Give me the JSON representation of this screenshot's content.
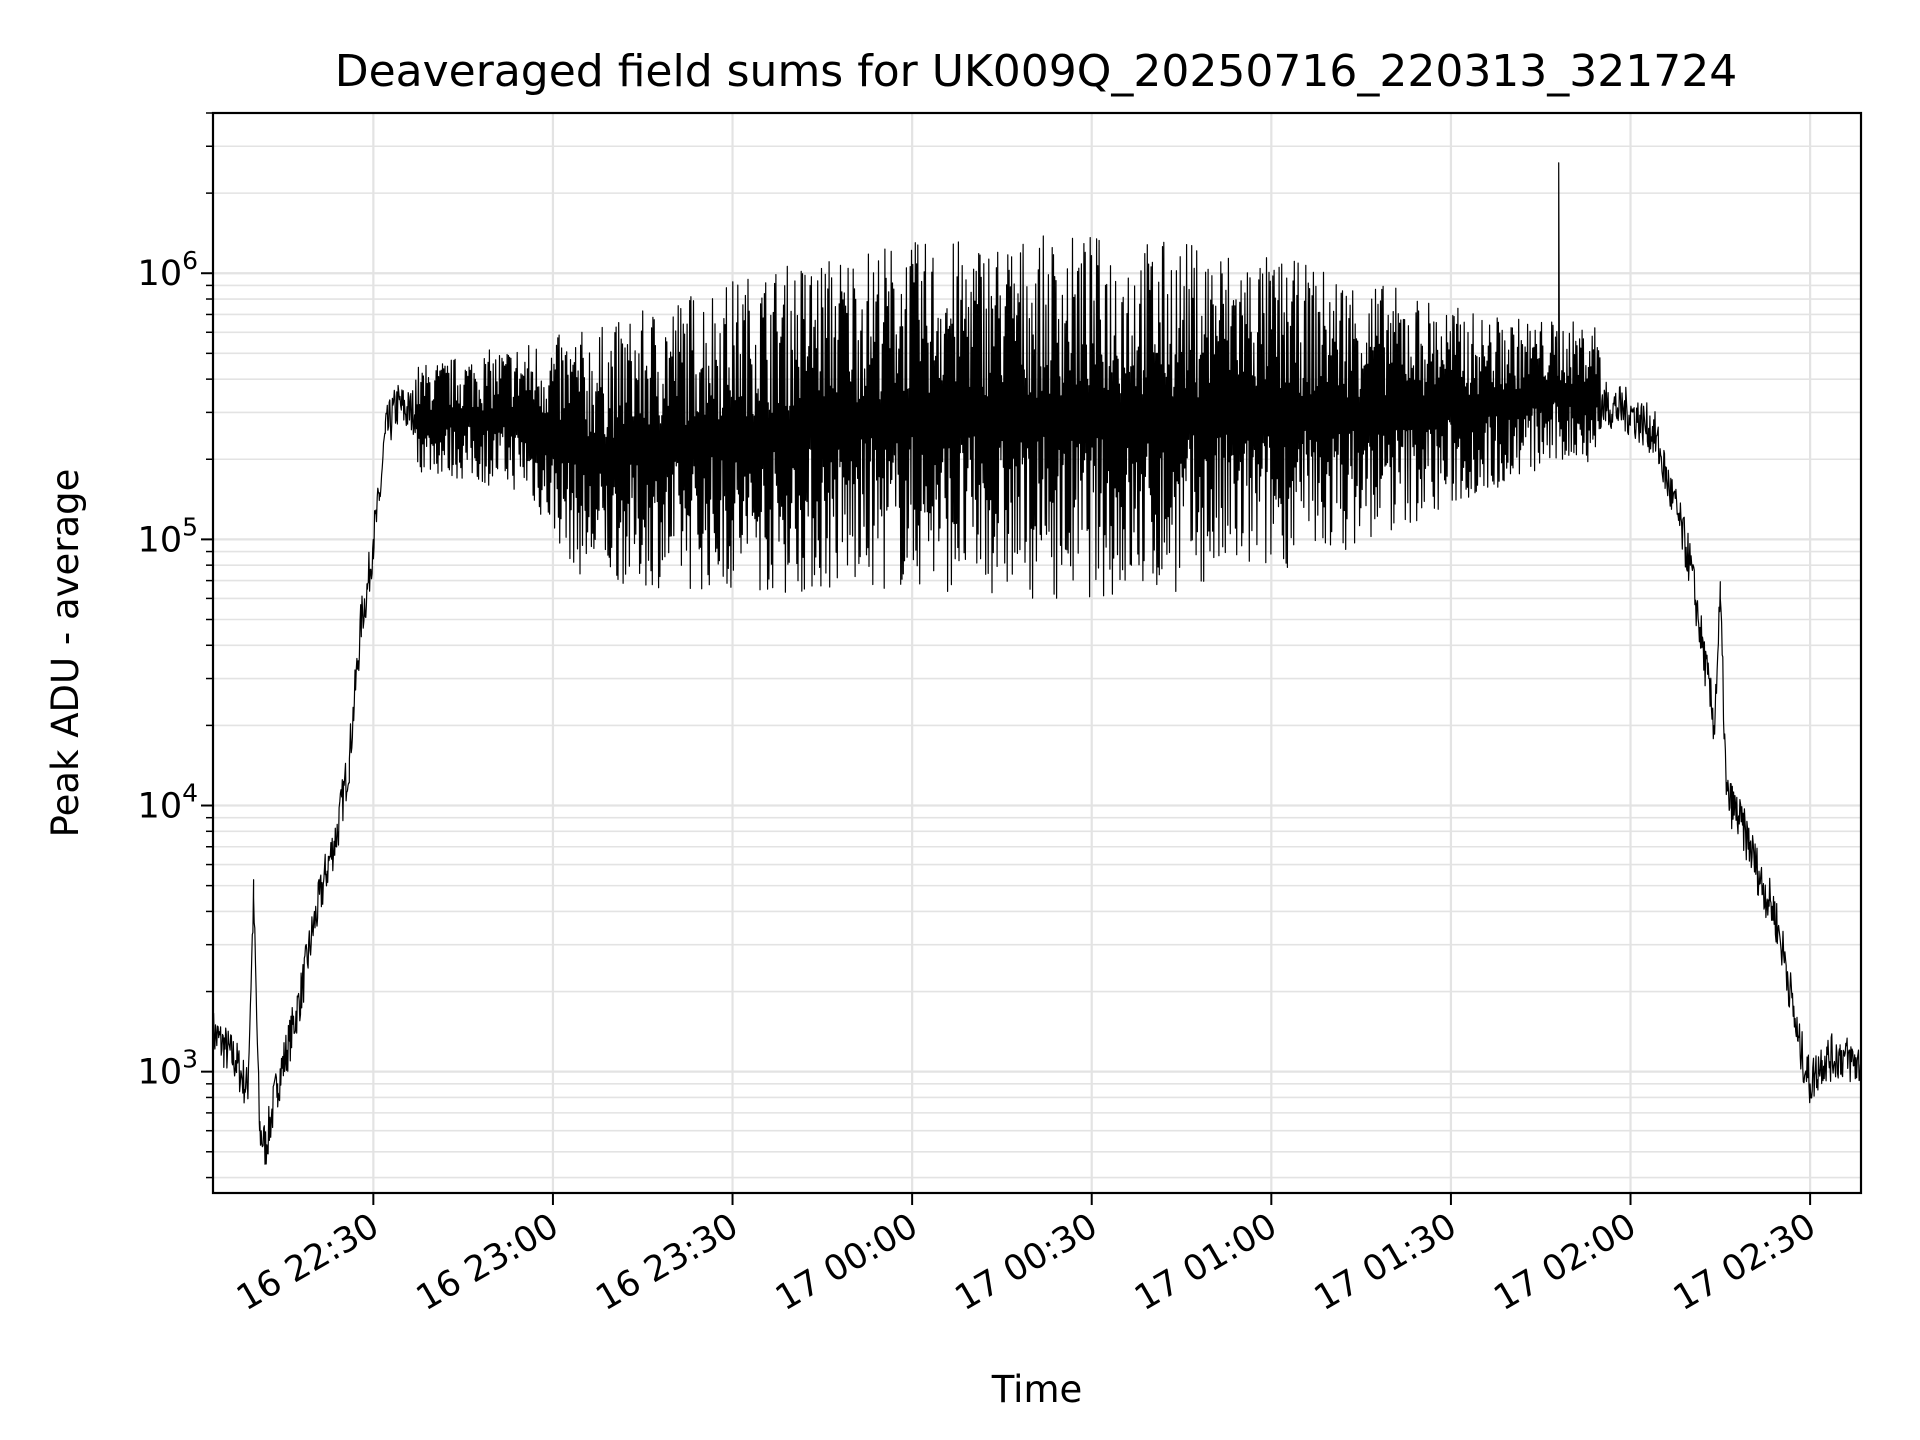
{
  "chart_data": {
    "type": "line",
    "title": "Deaveraged field sums for UK009Q_20250716_220313_321724",
    "xlabel": "Time",
    "ylabel": "Peak ADU - average",
    "yscale": "log",
    "ylim": [
      350,
      4000000
    ],
    "xlim": [
      "2025-07-16 22:03:13",
      "2025-07-17 02:38:30"
    ],
    "grid": true,
    "x_ticks": [
      {
        "t": "2025-07-16 22:30",
        "label": "16 22:30"
      },
      {
        "t": "2025-07-16 23:00",
        "label": "16 23:00"
      },
      {
        "t": "2025-07-16 23:30",
        "label": "16 23:30"
      },
      {
        "t": "2025-07-17 00:00",
        "label": "17 00:00"
      },
      {
        "t": "2025-07-17 00:30",
        "label": "17 00:30"
      },
      {
        "t": "2025-07-17 01:00",
        "label": "17 01:00"
      },
      {
        "t": "2025-07-17 01:30",
        "label": "17 01:30"
      },
      {
        "t": "2025-07-17 02:00",
        "label": "17 02:00"
      },
      {
        "t": "2025-07-17 02:30",
        "label": "17 02:30"
      }
    ],
    "y_ticks": [
      {
        "value": 1000,
        "base": "10",
        "exp": "3"
      },
      {
        "value": 10000,
        "base": "10",
        "exp": "4"
      },
      {
        "value": 100000,
        "base": "10",
        "exp": "5"
      },
      {
        "value": 1000000,
        "base": "10",
        "exp": "6"
      }
    ],
    "series": [
      {
        "color": "#000000",
        "points": [
          [
            "2025-07-16 22:03:13",
            1400
          ],
          [
            "2025-07-16 22:05",
            1250
          ],
          [
            "2025-07-16 22:07",
            1100
          ],
          [
            "2025-07-16 22:09",
            850
          ],
          [
            "2025-07-16 22:10",
            4500
          ],
          [
            "2025-07-16 22:11",
            600
          ],
          [
            "2025-07-16 22:12",
            520
          ],
          [
            "2025-07-16 22:14",
            900
          ],
          [
            "2025-07-16 22:16",
            1300
          ],
          [
            "2025-07-16 22:18",
            2000
          ],
          [
            "2025-07-16 22:20",
            3500
          ],
          [
            "2025-07-16 22:22",
            5500
          ],
          [
            "2025-07-16 22:24",
            8000
          ],
          [
            "2025-07-16 22:26",
            15000
          ],
          [
            "2025-07-16 22:28",
            50000
          ],
          [
            "2025-07-16 22:29",
            65000
          ],
          [
            "2025-07-16 22:30",
            100000
          ],
          [
            "2025-07-16 22:31",
            140000
          ],
          [
            "2025-07-16 22:32",
            250000
          ],
          [
            "2025-07-16 22:34",
            320000
          ],
          [
            "2025-07-16 22:36",
            300000
          ],
          [
            "2025-07-16 22:40",
            330000
          ],
          [
            "2025-07-16 22:45",
            300000
          ],
          [
            "2025-07-16 22:50",
            310000
          ],
          [
            "2025-07-16 22:55",
            290000
          ],
          [
            "2025-07-16 23:00",
            250000
          ],
          [
            "2025-07-16 23:10",
            220000
          ],
          [
            "2025-07-16 23:20",
            250000
          ],
          [
            "2025-07-16 23:30",
            300000
          ],
          [
            "2025-07-16 23:45",
            320000
          ],
          [
            "2025-07-17 00:00",
            330000
          ],
          [
            "2025-07-17 00:15",
            330000
          ],
          [
            "2025-07-17 00:30",
            340000
          ],
          [
            "2025-07-17 00:45",
            330000
          ],
          [
            "2025-07-17 01:00",
            320000
          ],
          [
            "2025-07-17 01:15",
            300000
          ],
          [
            "2025-07-17 01:30",
            280000
          ],
          [
            "2025-07-17 01:45",
            300000
          ],
          [
            "2025-07-17 01:48",
            2600000
          ],
          [
            "2025-07-17 01:50",
            350000
          ],
          [
            "2025-07-17 02:00",
            300000
          ],
          [
            "2025-07-17 02:04",
            250000
          ],
          [
            "2025-07-17 02:06",
            170000
          ],
          [
            "2025-07-17 02:08",
            120000
          ],
          [
            "2025-07-17 02:10",
            80000
          ],
          [
            "2025-07-17 02:12",
            40000
          ],
          [
            "2025-07-17 02:14",
            20000
          ],
          [
            "2025-07-17 02:15",
            60000
          ],
          [
            "2025-07-17 02:16",
            11000
          ],
          [
            "2025-07-17 02:18",
            9000
          ],
          [
            "2025-07-17 02:20",
            7000
          ],
          [
            "2025-07-17 02:22",
            5000
          ],
          [
            "2025-07-17 02:24",
            4000
          ],
          [
            "2025-07-17 02:26",
            2500
          ],
          [
            "2025-07-17 02:28",
            1300
          ],
          [
            "2025-07-17 02:30",
            900
          ],
          [
            "2025-07-17 02:32",
            1100
          ],
          [
            "2025-07-17 02:35",
            1150
          ],
          [
            "2025-07-17 02:38:30",
            1050
          ]
        ],
        "oscillation": {
          "start": "2025-07-16 22:37",
          "end": "2025-07-17 01:55",
          "low_envelope": [
            [
              "2025-07-16 22:37",
              180000
            ],
            [
              "2025-07-16 22:55",
              150000
            ],
            [
              "2025-07-16 23:05",
              70000
            ],
            [
              "2025-07-16 23:20",
              65000
            ],
            [
              "2025-07-16 23:40",
              62000
            ],
            [
              "2025-07-17 00:00",
              65000
            ],
            [
              "2025-07-17 00:20",
              60000
            ],
            [
              "2025-07-17 00:40",
              60000
            ],
            [
              "2025-07-17 01:00",
              75000
            ],
            [
              "2025-07-17 01:15",
              95000
            ],
            [
              "2025-07-17 01:30",
              130000
            ],
            [
              "2025-07-17 01:45",
              180000
            ],
            [
              "2025-07-17 01:55",
              200000
            ]
          ],
          "high_envelope": [
            [
              "2025-07-16 22:37",
              450000
            ],
            [
              "2025-07-16 22:55",
              550000
            ],
            [
              "2025-07-16 23:10",
              650000
            ],
            [
              "2025-07-16 23:25",
              900000
            ],
            [
              "2025-07-16 23:40",
              1100000
            ],
            [
              "2025-07-16 23:55",
              1300000
            ],
            [
              "2025-07-17 00:10",
              1350000
            ],
            [
              "2025-07-17 00:30",
              1400000
            ],
            [
              "2025-07-17 00:50",
              1300000
            ],
            [
              "2025-07-17 01:05",
              1100000
            ],
            [
              "2025-07-17 01:20",
              900000
            ],
            [
              "2025-07-17 01:35",
              700000
            ],
            [
              "2025-07-17 01:55",
              650000
            ]
          ]
        }
      }
    ]
  }
}
